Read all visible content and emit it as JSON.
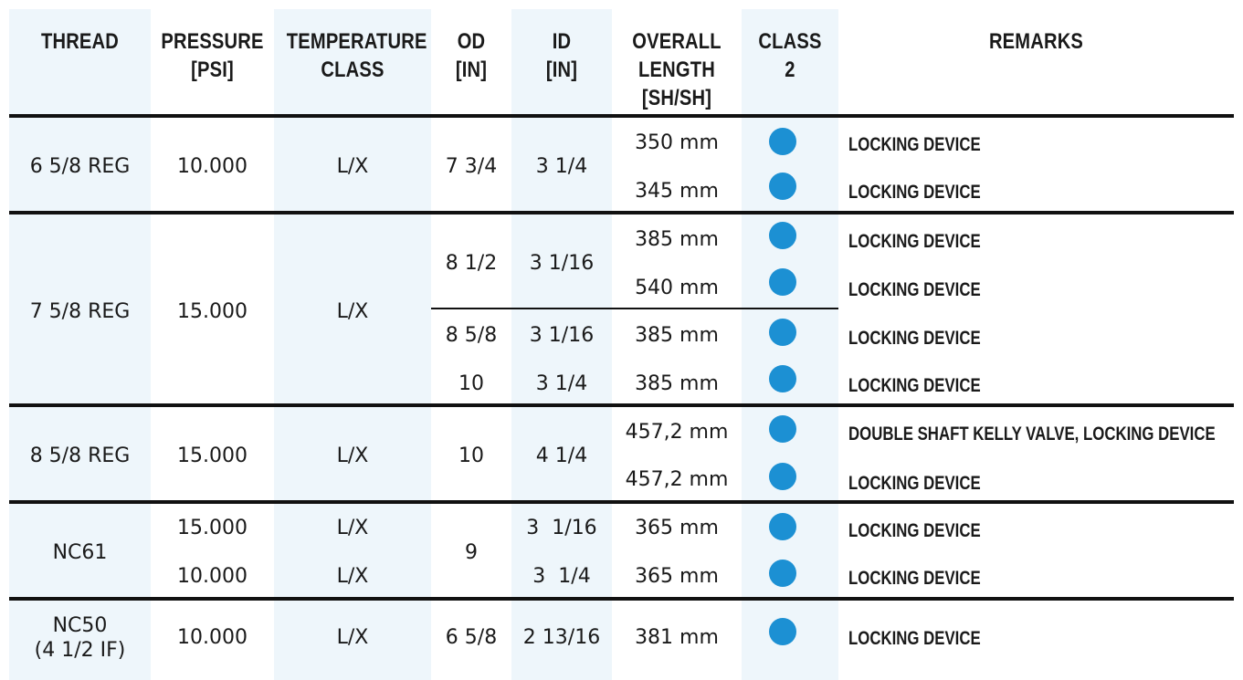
{
  "header": {
    "thread": [
      "THREAD"
    ],
    "pressure": [
      "PRESSURE",
      "[PSI]"
    ],
    "temperature": [
      "TEMPERATURE",
      "CLASS"
    ],
    "od": [
      "OD",
      "[IN]"
    ],
    "id": [
      "ID",
      "[IN]"
    ],
    "length": [
      "OVERALL",
      "LENGTH",
      "[SH/SH]"
    ],
    "class2": [
      "CLASS",
      "2"
    ],
    "remarks": [
      "REMARKS"
    ]
  },
  "groups": [
    {
      "thread": [
        "6 5/8 REG"
      ],
      "pressure": [
        "10.000"
      ],
      "temp": [
        "L/X"
      ],
      "od": [
        "7 3/4"
      ],
      "id": [
        "3 1/4"
      ]
    },
    {
      "thread": [
        "7 5/8 REG"
      ],
      "pressure": [
        "15.000"
      ],
      "temp": [
        "L/X"
      ],
      "od": [
        "8 1/2",
        "8 5/8",
        "10"
      ],
      "id": [
        "3 1/16",
        "3 1/16",
        "3 1/4"
      ]
    },
    {
      "thread": [
        "8 5/8 REG"
      ],
      "pressure": [
        "15.000"
      ],
      "temp": [
        "L/X"
      ],
      "od": [
        "10"
      ],
      "id": [
        "4 1/4"
      ]
    },
    {
      "thread": [
        "NC61"
      ],
      "pressure": [
        "15.000",
        "10.000"
      ],
      "temp": [
        "L/X",
        "L/X"
      ],
      "od": [
        "9"
      ],
      "id": [
        "3  1/16",
        "3  1/4"
      ]
    },
    {
      "thread": [
        "NC50",
        "(4 1/2 IF)"
      ],
      "pressure": [
        "10.000"
      ],
      "temp": [
        "L/X"
      ],
      "od": [
        "6 5/8"
      ],
      "id": [
        "2 13/16"
      ]
    }
  ],
  "rows": [
    {
      "length": "350 mm",
      "class2": true,
      "remark": "LOCKING DEVICE"
    },
    {
      "length": "345 mm",
      "class2": true,
      "remark": "LOCKING DEVICE"
    },
    {
      "length": "385 mm",
      "class2": true,
      "remark": "LOCKING DEVICE"
    },
    {
      "length": "540 mm",
      "class2": true,
      "remark": "LOCKING DEVICE"
    },
    {
      "length": "385 mm",
      "class2": true,
      "remark": "LOCKING DEVICE"
    },
    {
      "length": "385 mm",
      "class2": true,
      "remark": "LOCKING DEVICE"
    },
    {
      "length": "457,2 mm",
      "class2": true,
      "remark": "DOUBLE SHAFT KELLY VALVE, LOCKING DEVICE"
    },
    {
      "length": "457,2 mm",
      "class2": true,
      "remark": "LOCKING DEVICE"
    },
    {
      "length": "365 mm",
      "class2": true,
      "remark": "LOCKING DEVICE"
    },
    {
      "length": "365 mm",
      "class2": true,
      "remark": "LOCKING DEVICE"
    },
    {
      "length": "381 mm",
      "class2": true,
      "remark": "LOCKING DEVICE"
    }
  ],
  "colors": {
    "shaded_column": "#eef6fb",
    "dot": "#1c90d3",
    "rule": "#111111"
  }
}
